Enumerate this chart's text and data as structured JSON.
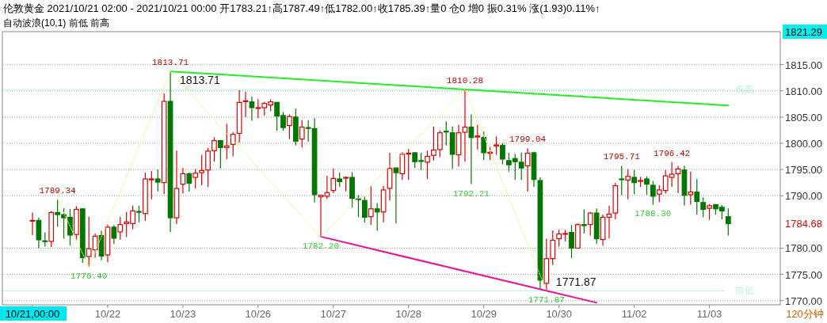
{
  "chart_data": {
    "type": "candlestick",
    "title": "伦敦黄金 2021/10/21 02:00 - 2021/10/21 00:00 开1783.21↑高1787.49↑低1782.00↑收1785.39↑量0 仓0 增0 振0.31% 涨(1.93)0.11%↑",
    "subtitle": "自动波浪(10,1) 前低 前高",
    "categories": [
      "10/21,00:00",
      null,
      null,
      null,
      null,
      null,
      null,
      null,
      null,
      null,
      null,
      null,
      "10/22",
      null,
      null,
      null,
      null,
      null,
      null,
      null,
      null,
      null,
      null,
      null,
      "10/23",
      null,
      null,
      null,
      null,
      null,
      null,
      null,
      null,
      null,
      null,
      null,
      "10/26",
      null,
      null,
      null,
      null,
      null,
      null,
      null,
      null,
      null,
      null,
      null,
      "10/27",
      null,
      null,
      null,
      null,
      null,
      null,
      null,
      null,
      null,
      null,
      null,
      "10/28",
      null,
      null,
      null,
      null,
      null,
      null,
      null,
      null,
      null,
      null,
      null,
      "10/29",
      null,
      null,
      null,
      null,
      null,
      null,
      null,
      null,
      null,
      null,
      null,
      "10/30",
      null,
      null,
      null,
      null,
      null,
      null,
      null,
      null,
      null,
      null,
      null,
      "11/02",
      null,
      null,
      null,
      null,
      null,
      null,
      null,
      null,
      null,
      null,
      null,
      "11/03",
      null,
      null,
      null
    ],
    "ohlc": [
      [
        1785.2,
        1786.8,
        1782.5,
        1785.3
      ],
      [
        1785.3,
        1785.8,
        1780.0,
        1781.6
      ],
      [
        1781.4,
        1783.0,
        1780.3,
        1781.3
      ],
      [
        1781.3,
        1787.1,
        1780.2,
        1786.8
      ],
      [
        1786.8,
        1789.34,
        1784.1,
        1786.4
      ],
      [
        1786.4,
        1787.6,
        1781.8,
        1785.8
      ],
      [
        1785.9,
        1787.5,
        1780.5,
        1782.5
      ],
      [
        1782.6,
        1788.0,
        1781.6,
        1787.4
      ],
      [
        1787.5,
        1787.6,
        1777.2,
        1778.2
      ],
      [
        1778.4,
        1786.0,
        1776.4,
        1779.9
      ],
      [
        1779.7,
        1782.8,
        1778.2,
        1782.3
      ],
      [
        1782.4,
        1783.3,
        1777.7,
        1778.5
      ],
      [
        1778.7,
        1784.5,
        1777.3,
        1784.0
      ],
      [
        1784.0,
        1784.4,
        1780.8,
        1781.9
      ],
      [
        1783.1,
        1786.0,
        1781.6,
        1784.5
      ],
      [
        1784.7,
        1786.9,
        1782.1,
        1785.0
      ],
      [
        1784.7,
        1788.1,
        1783.6,
        1787.1
      ],
      [
        1787.0,
        1788.1,
        1784.9,
        1786.9
      ],
      [
        1786.6,
        1794.4,
        1785.2,
        1793.2
      ],
      [
        1793.1,
        1794.7,
        1789.3,
        1793.2
      ],
      [
        1793.2,
        1795.0,
        1790.8,
        1792.6
      ],
      [
        1792.5,
        1809.5,
        1790.3,
        1808.0
      ],
      [
        1808.0,
        1813.71,
        1783.1,
        1785.8
      ],
      [
        1785.8,
        1798.6,
        1784.6,
        1791.4
      ],
      [
        1792.2,
        1795.3,
        1790.4,
        1794.2
      ],
      [
        1794.2,
        1794.4,
        1790.8,
        1792.4
      ],
      [
        1793.5,
        1795.1,
        1791.4,
        1794.3
      ],
      [
        1794.4,
        1797.8,
        1792.0,
        1794.8
      ],
      [
        1794.9,
        1799.1,
        1791.7,
        1798.5
      ],
      [
        1798.6,
        1801.2,
        1796.5,
        1800.5
      ],
      [
        1800.5,
        1800.6,
        1795.2,
        1799.2
      ],
      [
        1799.2,
        1803.7,
        1797.0,
        1799.5
      ],
      [
        1799.8,
        1802.1,
        1797.5,
        1801.7
      ],
      [
        1801.9,
        1810.1,
        1800.1,
        1807.8
      ],
      [
        1808.0,
        1809.8,
        1805.0,
        1808.1
      ],
      [
        1807.9,
        1808.9,
        1804.3,
        1806.8
      ],
      [
        1806.7,
        1808.4,
        1804.8,
        1806.8
      ],
      [
        1806.8,
        1807.9,
        1805.3,
        1807.6
      ],
      [
        1807.3,
        1808.4,
        1806.1,
        1807.9
      ],
      [
        1807.8,
        1807.9,
        1802.4,
        1805.2
      ],
      [
        1805.3,
        1806.0,
        1802.4,
        1803.0
      ],
      [
        1803.4,
        1805.5,
        1800.8,
        1805.1
      ],
      [
        1805.0,
        1806.6,
        1799.6,
        1800.4
      ],
      [
        1800.8,
        1804.4,
        1799.2,
        1803.1
      ],
      [
        1803.0,
        1804.4,
        1800.3,
        1802.9
      ],
      [
        1802.8,
        1804.8,
        1788.7,
        1790.2
      ],
      [
        1789.8,
        1790.1,
        1782.2,
        1790.1
      ],
      [
        1789.9,
        1793.8,
        1789.4,
        1790.6
      ],
      [
        1791.0,
        1795.2,
        1790.5,
        1793.3
      ],
      [
        1793.2,
        1794.4,
        1791.7,
        1792.7
      ],
      [
        1793.4,
        1793.7,
        1790.8,
        1793.5
      ],
      [
        1793.5,
        1794.5,
        1787.8,
        1789.5
      ],
      [
        1789.4,
        1790.1,
        1785.9,
        1789.3
      ],
      [
        1789.1,
        1789.8,
        1784.9,
        1785.9
      ],
      [
        1786.0,
        1791.8,
        1784.4,
        1787.5
      ],
      [
        1787.5,
        1788.6,
        1783.3,
        1786.9
      ],
      [
        1786.9,
        1791.9,
        1784.9,
        1791.1
      ],
      [
        1791.4,
        1798.2,
        1789.1,
        1795.2
      ],
      [
        1795.3,
        1795.3,
        1784.7,
        1794.4
      ],
      [
        1794.2,
        1798.3,
        1793.0,
        1797.9
      ],
      [
        1798.0,
        1798.9,
        1793.0,
        1798.1
      ],
      [
        1798.2,
        1798.3,
        1795.3,
        1796.5
      ],
      [
        1796.7,
        1798.2,
        1794.9,
        1796.6
      ],
      [
        1796.4,
        1798.6,
        1793.2,
        1797.5
      ],
      [
        1797.7,
        1803.2,
        1796.7,
        1798.7
      ],
      [
        1798.8,
        1802.4,
        1797.4,
        1802.0
      ],
      [
        1802.3,
        1804.2,
        1799.6,
        1802.2
      ],
      [
        1802.0,
        1803.2,
        1795.1,
        1797.9
      ],
      [
        1797.8,
        1803.5,
        1795.6,
        1802.0
      ],
      [
        1802.1,
        1810.28,
        1796.5,
        1803.1
      ],
      [
        1803.1,
        1805.5,
        1792.21,
        1801.1
      ],
      [
        1801.2,
        1803.5,
        1798.8,
        1801.4
      ],
      [
        1801.1,
        1802.2,
        1796.8,
        1798.2
      ],
      [
        1798.1,
        1799.3,
        1796.8,
        1798.3
      ],
      [
        1799.5,
        1801.3,
        1797.8,
        1799.7
      ],
      [
        1799.6,
        1800.0,
        1796.0,
        1797.0
      ],
      [
        1796.7,
        1798.2,
        1794.6,
        1795.9
      ],
      [
        1797.1,
        1798.0,
        1793.0,
        1796.5
      ],
      [
        1796.4,
        1798.2,
        1793.0,
        1795.3
      ],
      [
        1795.7,
        1799.04,
        1790.8,
        1798.1
      ],
      [
        1798.2,
        1798.4,
        1791.7,
        1793.1
      ],
      [
        1792.9,
        1793.5,
        1772.2,
        1773.9
      ],
      [
        1773.3,
        1781.8,
        1771.87,
        1778.0
      ],
      [
        1778.0,
        1783.4,
        1776.8,
        1781.5
      ],
      [
        1781.8,
        1783.5,
        1780.3,
        1782.7
      ],
      [
        1782.7,
        1783.5,
        1781.3,
        1782.8
      ],
      [
        1783.0,
        1784.4,
        1778.1,
        1780.0
      ],
      [
        1780.0,
        1784.7,
        1780.0,
        1784.5
      ],
      [
        1784.5,
        1787.4,
        1782.8,
        1784.3
      ],
      [
        1784.5,
        1786.9,
        1782.4,
        1786.7
      ],
      [
        1786.7,
        1787.6,
        1780.8,
        1781.8
      ],
      [
        1781.65,
        1786.4,
        1780.5,
        1785.9
      ],
      [
        1785.9,
        1788.1,
        1781.9,
        1786.5
      ],
      [
        1786.7,
        1792.5,
        1785.5,
        1791.9
      ],
      [
        1793.2,
        1795.71,
        1790.1,
        1793.1
      ],
      [
        1793.0,
        1795.1,
        1789.3,
        1793.7
      ],
      [
        1793.5,
        1794.9,
        1790.3,
        1792.5
      ],
      [
        1792.8,
        1793.6,
        1791.7,
        1792.9
      ],
      [
        1793.2,
        1793.7,
        1790.2,
        1792.2
      ],
      [
        1792.0,
        1792.8,
        1788.3,
        1789.9
      ],
      [
        1790.3,
        1792.0,
        1788.8,
        1791.1
      ],
      [
        1791.0,
        1794.9,
        1790.4,
        1793.8
      ],
      [
        1793.5,
        1796.42,
        1791.7,
        1794.1
      ],
      [
        1794.2,
        1795.7,
        1790.5,
        1795.1
      ],
      [
        1794.9,
        1795.7,
        1788.1,
        1790.1
      ],
      [
        1790.2,
        1794.6,
        1788.3,
        1790.7
      ],
      [
        1790.7,
        1793.2,
        1786.4,
        1788.9
      ],
      [
        1788.7,
        1789.7,
        1785.9,
        1787.4
      ],
      [
        1787.6,
        1788.4,
        1785.4,
        1788.1
      ],
      [
        1788.3,
        1788.4,
        1786.4,
        1787.5
      ],
      [
        1787.8,
        1788.2,
        1785.5,
        1787.1
      ],
      [
        1786.0,
        1787.6,
        1782.4,
        1784.68
      ]
    ],
    "ylim": [
      1769.2,
      1821.29
    ],
    "yticks": [
      {
        "value": 1770,
        "label": "1770.00"
      },
      {
        "value": 1775,
        "label": "1775.00"
      },
      {
        "value": 1780,
        "label": "1780.00"
      },
      {
        "value": 1790,
        "label": "1790.00"
      },
      {
        "value": 1795,
        "label": "1795.00"
      },
      {
        "value": 1800,
        "label": "1800.00"
      },
      {
        "value": 1805,
        "label": "1805.00"
      },
      {
        "value": 1810,
        "label": "1810.00"
      },
      {
        "value": 1815,
        "label": "1815.00"
      }
    ],
    "grid": "y",
    "series": [
      {
        "type": "line",
        "color": "#22ee22",
        "values": [
          null,
          null,
          null,
          null,
          null,
          null,
          null,
          null,
          null,
          null,
          null,
          null,
          null,
          null,
          null,
          null,
          null,
          null,
          null,
          null,
          null,
          null,
          1813.71,
          null,
          null,
          null,
          null,
          null,
          null,
          null,
          null,
          null,
          null,
          null,
          null,
          null,
          null,
          null,
          null,
          null,
          null,
          null,
          null,
          null,
          null,
          null,
          null,
          null,
          null,
          null,
          null,
          null,
          null,
          null,
          null,
          null,
          null,
          null,
          null,
          null,
          null,
          null,
          null,
          null,
          null,
          null,
          null,
          null,
          null,
          1810.28,
          null,
          null,
          null,
          null,
          null,
          null,
          null,
          null,
          null,
          null,
          null,
          null,
          null,
          null,
          null,
          null,
          null,
          null,
          null,
          null,
          null,
          null,
          null,
          null,
          null,
          null,
          null,
          null,
          null,
          null,
          null,
          null,
          null,
          null,
          null,
          null,
          null,
          null,
          null,
          null,
          null,
          1807.2
        ],
        "value_labels": [
          null,
          null,
          null,
          null,
          null,
          null,
          null,
          null,
          null,
          null,
          null,
          null,
          null,
          null,
          null,
          null,
          null,
          null,
          null,
          null,
          null,
          null,
          "1813.71",
          null,
          null,
          null,
          null,
          null,
          null,
          null,
          null,
          null,
          null,
          null,
          null,
          null,
          null,
          null,
          null,
          null,
          null,
          null,
          null,
          null,
          null,
          null,
          null,
          null,
          null,
          null,
          null,
          null,
          null,
          null,
          null,
          null,
          null,
          null,
          null,
          null,
          null,
          null,
          null,
          null,
          null,
          null,
          null,
          null,
          null,
          null,
          null,
          null,
          null,
          null,
          null,
          null,
          null,
          null,
          null,
          null,
          null,
          null,
          null,
          null,
          null,
          null,
          null,
          null,
          null,
          null,
          null,
          null,
          null,
          null,
          null,
          null,
          null,
          null,
          null,
          null,
          null,
          null,
          null,
          null,
          null,
          null,
          null,
          null,
          null,
          null,
          null,
          null
        ]
      },
      {
        "type": "line",
        "color": "#ee1199",
        "values": [
          null,
          null,
          null,
          null,
          null,
          null,
          null,
          null,
          null,
          null,
          null,
          null,
          null,
          null,
          null,
          null,
          null,
          null,
          null,
          null,
          null,
          null,
          null,
          null,
          null,
          null,
          null,
          null,
          null,
          null,
          null,
          null,
          null,
          null,
          null,
          null,
          null,
          null,
          null,
          null,
          null,
          null,
          null,
          null,
          null,
          null,
          1782.2,
          null,
          null,
          null,
          null,
          null,
          null,
          null,
          null,
          null,
          null,
          null,
          null,
          null,
          null,
          null,
          null,
          null,
          null,
          null,
          null,
          null,
          null,
          null,
          null,
          null,
          null,
          null,
          null,
          null,
          null,
          null,
          null,
          null,
          null,
          null,
          1771.87,
          null,
          null,
          null,
          null,
          null,
          null,
          null,
          1769.6,
          null,
          null,
          null,
          null,
          null,
          null,
          null,
          null,
          null,
          null,
          null,
          null,
          null,
          null,
          null,
          null,
          null,
          null,
          null,
          null,
          null
        ],
        "value_labels": [
          null,
          null,
          null,
          null,
          null,
          null,
          null,
          null,
          null,
          null,
          null,
          null,
          null,
          null,
          null,
          null,
          null,
          null,
          null,
          null,
          null,
          null,
          null,
          null,
          null,
          null,
          null,
          null,
          null,
          null,
          null,
          null,
          null,
          null,
          null,
          null,
          null,
          null,
          null,
          null,
          null,
          null,
          null,
          null,
          null,
          null,
          null,
          null,
          null,
          null,
          null,
          null,
          null,
          null,
          null,
          null,
          null,
          null,
          null,
          null,
          null,
          null,
          null,
          null,
          null,
          null,
          null,
          null,
          null,
          null,
          null,
          null,
          null,
          null,
          null,
          null,
          null,
          null,
          null,
          null,
          null,
          null,
          "1771.87",
          null,
          null,
          null,
          null,
          null,
          null,
          null,
          null,
          null,
          null,
          null,
          null,
          null,
          null,
          null,
          null,
          null,
          null,
          null,
          null,
          null,
          null,
          null,
          null,
          null,
          null,
          null,
          null,
          null
        ]
      },
      {
        "type": "line",
        "color": "#f0f080",
        "line_style": "dotted",
        "values": [
          null,
          null,
          null,
          null,
          1789.34,
          null,
          null,
          null,
          null,
          1776.4,
          null,
          null,
          null,
          null,
          null,
          null,
          null,
          null,
          null,
          null,
          null,
          null,
          1813.71,
          null,
          null,
          null,
          null,
          null,
          null,
          null,
          null,
          null,
          null,
          null,
          null,
          null,
          null,
          null,
          null,
          null,
          null,
          null,
          null,
          null,
          null,
          null,
          1782.2,
          null,
          null,
          null,
          null,
          null,
          null,
          null,
          null,
          null,
          null,
          null,
          null,
          null,
          null,
          null,
          null,
          null,
          null,
          null,
          null,
          null,
          null,
          1810.28,
          null,
          null,
          null,
          null,
          null,
          null,
          null,
          null,
          null,
          null,
          null,
          null,
          1771.87,
          null,
          null,
          null,
          null,
          null,
          null,
          null,
          null,
          null,
          null,
          null,
          null,
          null,
          null,
          null,
          null,
          null,
          null,
          null,
          null,
          null,
          null,
          null,
          null,
          null,
          null,
          null,
          null,
          null
        ]
      }
    ],
    "ref_lines": [
      {
        "axis": "y",
        "value": 1810.28,
        "label": "前高",
        "color": "#b8f0e8"
      },
      {
        "axis": "y",
        "value": 1771.87,
        "label": "前低",
        "color": "#b8f0e8"
      }
    ],
    "annotations": [
      {
        "text": "1789.34",
        "y": 1789.34
      },
      {
        "text": "1776.40",
        "y": 1776.4
      },
      {
        "text": "1813.71",
        "y": 1813.71
      },
      {
        "text": "1782.20",
        "y": 1782.2
      },
      {
        "text": "1810.28",
        "y": 1810.28
      },
      {
        "text": "1792.21",
        "y": 1792.21
      },
      {
        "text": "1799.04",
        "y": 1799.04
      },
      {
        "text": "1771.87",
        "y": 1771.87
      },
      {
        "text": "1795.71",
        "y": 1795.71
      },
      {
        "text": "1788.30",
        "y": 1788.3
      },
      {
        "text": "1796.42",
        "y": 1796.42
      },
      "1784.68",
      "1821.29",
      "120分钟"
    ]
  }
}
